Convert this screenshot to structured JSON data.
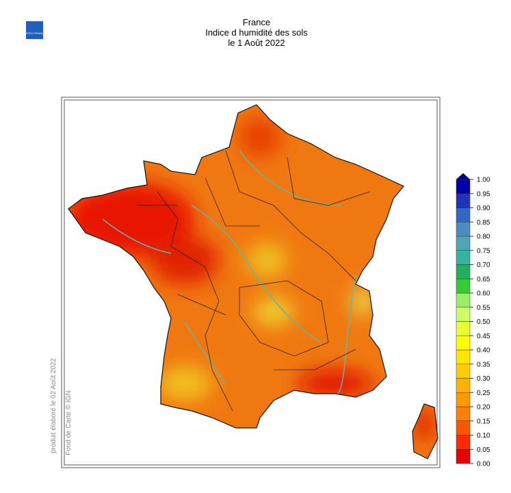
{
  "header": {
    "title": "France",
    "subtitle": "Indice d humidité des sols",
    "date": "le 1 Août 2022"
  },
  "logo": {
    "text": "METEO FRANCE"
  },
  "credits": {
    "produced": "produit élaboré le 02 Août 2022",
    "basemap": "Fond de Carte © IGN"
  },
  "colorbar": {
    "ticks": [
      {
        "value": 0,
        "label": "0.00"
      },
      {
        "value": 0.05,
        "label": "0.05"
      },
      {
        "value": 0.1,
        "label": "0.10"
      },
      {
        "value": 0.15,
        "label": "0.15"
      },
      {
        "value": 0.2,
        "label": "0.20"
      },
      {
        "value": 0.25,
        "label": "0.25"
      },
      {
        "value": 0.3,
        "label": "0.30"
      },
      {
        "value": 0.35,
        "label": "0.35"
      },
      {
        "value": 0.4,
        "label": "0.40"
      },
      {
        "value": 0.45,
        "label": "0.45"
      },
      {
        "value": 0.5,
        "label": "0.50"
      },
      {
        "value": 0.55,
        "label": "0.55"
      },
      {
        "value": 0.6,
        "label": "0.60"
      },
      {
        "value": 0.65,
        "label": "0.65"
      },
      {
        "value": 0.7,
        "label": "0.70"
      },
      {
        "value": 0.75,
        "label": "0.75"
      },
      {
        "value": 0.8,
        "label": "0.80"
      },
      {
        "value": 0.85,
        "label": "0.85"
      },
      {
        "value": 0.9,
        "label": "0.90"
      },
      {
        "value": 0.95,
        "label": "0.95"
      },
      {
        "value": 1,
        "label": "1.00"
      }
    ],
    "colors": [
      "#e60000",
      "#ff2a00",
      "#ff5500",
      "#ff7f00",
      "#ff9900",
      "#ffb300",
      "#ffcc00",
      "#ffe600",
      "#ffff00",
      "#e6ff33",
      "#ccff66",
      "#99ee66",
      "#33cc33",
      "#22b060",
      "#33b3a0",
      "#4da6b3",
      "#4d8cc0",
      "#3366cc",
      "#2233bb",
      "#0000aa"
    ],
    "arrow_color": "#00008b"
  }
}
